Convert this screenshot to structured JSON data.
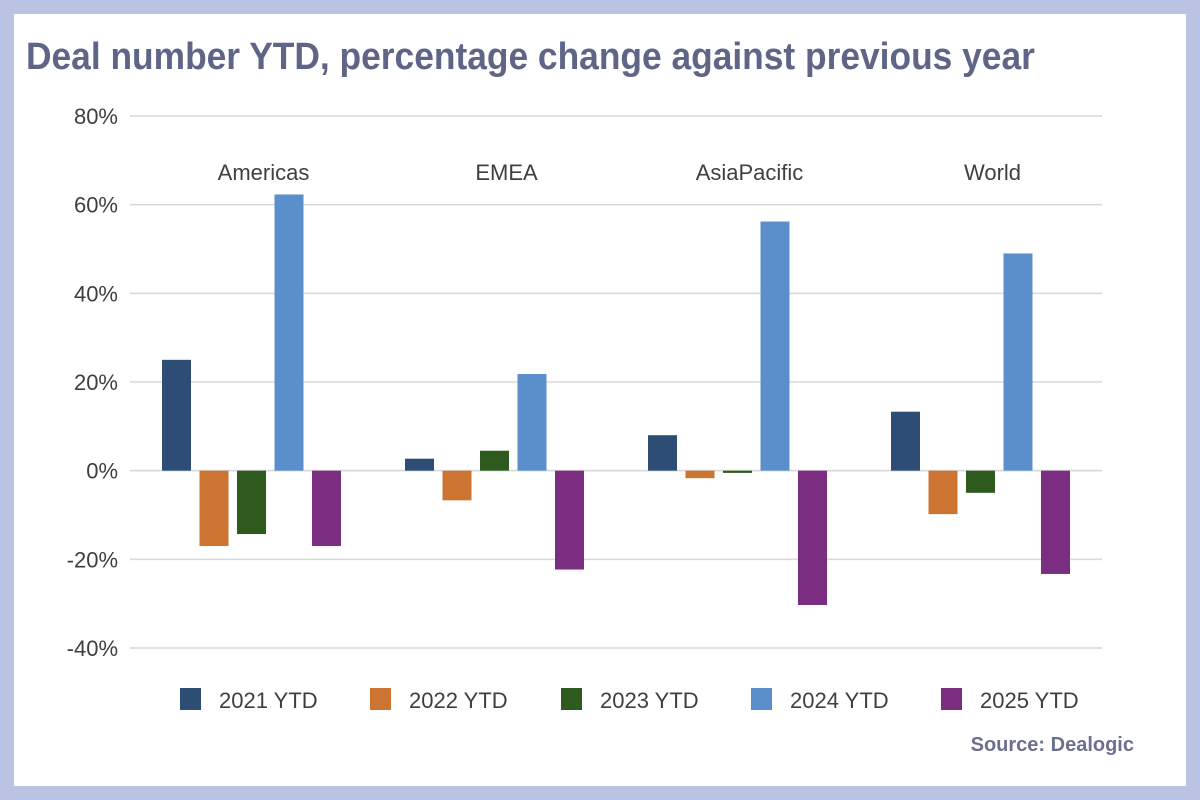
{
  "title": "Deal number YTD, percentage change against previous year",
  "source": "Source: Dealogic",
  "colors": {
    "background": "#bcc3e2",
    "title": "#5f6587",
    "grid": "#d9d9d9"
  },
  "chart_data": {
    "type": "bar",
    "title": "Deal number YTD, percentage change against previous year",
    "categories": [
      "Americas",
      "EMEA",
      "AsiaPacific",
      "World"
    ],
    "series": [
      {
        "name": "2021 YTD",
        "color": "#2e4d75",
        "values": [
          25,
          2.7,
          8,
          13.3
        ]
      },
      {
        "name": "2022 YTD",
        "color": "#cc7533",
        "values": [
          -17,
          -6.7,
          -1.7,
          -9.8
        ]
      },
      {
        "name": "2023 YTD",
        "color": "#2f5a1e",
        "values": [
          -14.3,
          4.5,
          -0.5,
          -5
        ]
      },
      {
        "name": "2024 YTD",
        "color": "#5b8fcb",
        "values": [
          62.3,
          21.8,
          56.2,
          49
        ]
      },
      {
        "name": "2025 YTD",
        "color": "#7b2d82",
        "values": [
          -17,
          -22.3,
          -30.3,
          -23.3
        ]
      }
    ],
    "ylim": [
      -40,
      80
    ],
    "yticks": [
      80,
      60,
      40,
      20,
      0,
      -20,
      -40
    ],
    "ytick_labels": [
      "80%",
      "60%",
      "40%",
      "20%",
      "0%",
      "-20%",
      "-40%"
    ],
    "category_label_position": "top",
    "legend": "bottom",
    "grid": true
  }
}
